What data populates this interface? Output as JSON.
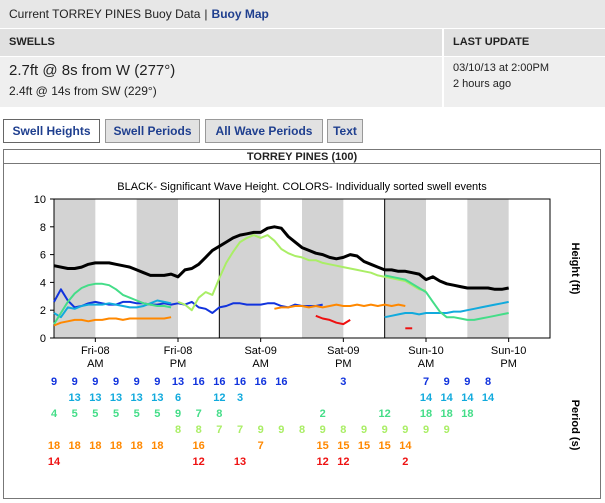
{
  "topbar": {
    "prefix": "Current TORREY PINES Buoy Data",
    "separator": "|",
    "map_link": "Buoy Map"
  },
  "swells": {
    "header": "SWELLS",
    "primary": "2.7ft @ 8s from W (277°)",
    "secondary": "2.4ft @ 14s from SW (229°)"
  },
  "update": {
    "header": "LAST UPDATE",
    "time": "03/10/13 at 2:00PM",
    "ago": "2 hours ago"
  },
  "tabs": [
    "Swell Heights",
    "Swell Periods",
    "All Wave Periods",
    "Text"
  ],
  "chart_title": "TORREY PINES (100)",
  "colors": {
    "black": "#000000",
    "blue": "#1133dd",
    "cyan": "#11aadd",
    "green": "#44dd88",
    "lime": "#aaee66",
    "orange": "#ff8800",
    "red": "#ee1111"
  },
  "chart_data": {
    "type": "line",
    "title": "BLACK- Significant Wave Height.  COLORS- Individually sorted swell events",
    "ylabel": "Height (ft)",
    "ylim": [
      0,
      10
    ],
    "yticks": [
      0,
      2,
      4,
      6,
      8,
      10
    ],
    "xlim": [
      0,
      72
    ],
    "x_ticks": [
      {
        "x": 6,
        "top": "Fri-08",
        "bottom": "AM"
      },
      {
        "x": 18,
        "top": "Fri-08",
        "bottom": "PM"
      },
      {
        "x": 30,
        "top": "Sat-09",
        "bottom": "AM"
      },
      {
        "x": 42,
        "top": "Sat-09",
        "bottom": "PM"
      },
      {
        "x": 54,
        "top": "Sun-10",
        "bottom": "AM"
      },
      {
        "x": 66,
        "top": "Sun-10",
        "bottom": "PM"
      }
    ],
    "night_bands": [
      [
        0,
        6
      ],
      [
        12,
        18
      ],
      [
        24,
        30
      ],
      [
        36,
        42
      ],
      [
        48,
        54
      ],
      [
        60,
        66
      ]
    ],
    "day_dividers": [
      24,
      48
    ],
    "series": [
      {
        "name": "Significant Wave Height",
        "color": "black",
        "x": [
          0,
          2,
          3,
          4,
          5,
          6,
          7,
          8,
          9,
          10,
          11,
          12,
          13,
          14,
          15,
          16,
          17,
          18,
          19,
          20,
          21,
          22,
          23,
          24,
          25,
          26,
          27,
          28,
          29,
          30,
          31,
          32,
          33,
          34,
          35,
          36,
          37,
          38,
          39,
          40,
          41,
          42,
          43,
          44,
          45,
          46,
          47,
          48,
          49,
          50,
          51,
          52,
          53,
          54,
          55,
          56,
          57,
          58,
          59,
          60,
          61,
          62,
          63,
          64,
          65,
          66
        ],
        "values": [
          5.2,
          5.0,
          5.0,
          5.1,
          5.3,
          5.4,
          5.4,
          5.4,
          5.3,
          5.2,
          5.1,
          4.9,
          4.7,
          4.5,
          4.5,
          4.5,
          4.6,
          4.4,
          4.9,
          5.0,
          5.3,
          5.8,
          6.3,
          6.6,
          6.9,
          7.2,
          7.4,
          7.5,
          7.6,
          7.6,
          7.9,
          8.0,
          7.9,
          7.3,
          6.9,
          6.5,
          6.3,
          6.1,
          6.0,
          5.8,
          5.7,
          5.8,
          6.0,
          5.9,
          5.5,
          5.3,
          5.1,
          4.9,
          4.9,
          4.8,
          4.8,
          4.7,
          4.6,
          4.2,
          4.4,
          4.1,
          3.9,
          3.8,
          3.7,
          3.6,
          3.6,
          3.6,
          3.6,
          3.5,
          3.5,
          3.6
        ]
      },
      {
        "name": "Swell 9s",
        "color": "blue",
        "x": [
          0,
          1,
          2,
          3,
          4,
          5,
          6,
          7,
          8,
          9,
          10,
          11,
          12,
          13,
          14,
          15,
          16,
          17,
          18,
          19,
          20,
          21,
          22,
          23,
          24,
          25,
          26,
          27,
          28,
          29,
          30,
          31,
          32,
          33,
          34,
          35,
          36,
          37,
          38,
          39
        ],
        "values": [
          2.6,
          3.5,
          2.7,
          2.2,
          2.3,
          2.5,
          2.6,
          2.5,
          2.4,
          2.4,
          2.6,
          2.6,
          2.5,
          2.5,
          2.4,
          2.4,
          2.5,
          2.4,
          2.5,
          2.4,
          2.6,
          2.2,
          2.1,
          1.8,
          2.2,
          2.3,
          2.5,
          2.5,
          2.4,
          2.4,
          2.4,
          2.5,
          2.5,
          2.3,
          2.2,
          2.4,
          2.3,
          2.3,
          2.3,
          2.4
        ]
      },
      {
        "name": "Swell 13s",
        "color": "cyan",
        "x": [
          0,
          1,
          2,
          3,
          4,
          5,
          6,
          7,
          8,
          9,
          10,
          11,
          12,
          13,
          14,
          15,
          16,
          17
        ],
        "values": [
          1.8,
          1.5,
          2.2,
          2.1,
          2.3,
          2.4,
          2.4,
          2.4,
          2.5,
          2.4,
          2.3,
          2.2,
          2.2,
          2.3,
          2.5,
          2.7,
          2.6,
          2.5
        ]
      },
      {
        "name": "Swell 5s",
        "color": "green",
        "x": [
          0,
          1,
          2,
          3,
          4,
          5,
          6,
          7,
          8,
          9,
          10,
          11,
          12,
          13,
          14,
          15,
          16,
          17
        ],
        "values": [
          1.0,
          1.8,
          2.6,
          3.2,
          3.6,
          3.8,
          3.9,
          3.9,
          3.8,
          3.5,
          3.1,
          2.9,
          2.7,
          2.5,
          2.4,
          2.3,
          2.3,
          2.2
        ]
      },
      {
        "name": "Swell 8s",
        "color": "lime",
        "x": [
          18,
          19,
          20,
          21,
          22,
          23,
          24,
          25,
          26,
          27,
          28,
          29,
          30,
          31,
          32,
          33,
          34,
          35,
          36,
          37,
          38,
          39,
          40,
          41,
          42,
          43,
          44,
          45,
          46,
          47,
          48,
          49,
          50,
          51,
          52,
          53,
          54
        ],
        "values": [
          2.6,
          2.4,
          2.0,
          2.9,
          3.3,
          3.1,
          4.3,
          5.4,
          6.2,
          6.9,
          7.2,
          7.4,
          7.2,
          7.4,
          7.0,
          6.4,
          6.1,
          5.9,
          5.8,
          5.6,
          5.6,
          5.4,
          5.3,
          5.2,
          5.1,
          5.0,
          4.9,
          4.8,
          4.7,
          4.5,
          4.4,
          4.3,
          4.2,
          4.1,
          3.8,
          3.5,
          3.4
        ]
      },
      {
        "name": "Swell 18s",
        "color": "orange",
        "x": [
          0,
          1,
          2,
          3,
          4,
          5,
          6,
          7,
          8,
          9,
          10,
          11,
          12,
          13,
          14,
          15,
          16,
          17
        ],
        "values": [
          0.9,
          1.1,
          1.2,
          1.3,
          1.3,
          1.2,
          1.3,
          1.3,
          1.4,
          1.4,
          1.3,
          1.4,
          1.4,
          1.4,
          1.4,
          1.4,
          1.4,
          1.5
        ]
      },
      {
        "name": "Swell 16s",
        "color": "cyan",
        "x": [
          48,
          49,
          50,
          51,
          52,
          53,
          54,
          55,
          56,
          57,
          58,
          59,
          60,
          61,
          62,
          63,
          64,
          65,
          66
        ],
        "values": [
          1.5,
          1.6,
          1.7,
          1.8,
          1.8,
          1.7,
          1.8,
          1.8,
          1.8,
          1.8,
          1.9,
          1.9,
          2.0,
          2.1,
          2.2,
          2.3,
          2.4,
          2.5,
          2.6
        ]
      },
      {
        "name": "Swell 7s",
        "color": "green",
        "x": [
          48,
          49,
          50,
          51,
          52,
          53,
          54,
          55,
          56,
          57,
          58,
          59,
          60,
          61,
          62,
          63,
          64,
          65,
          66
        ],
        "values": [
          4.5,
          4.4,
          4.3,
          4.2,
          3.9,
          3.6,
          3.3,
          2.6,
          1.9,
          1.5,
          1.5,
          1.4,
          1.3,
          1.3,
          1.4,
          1.5,
          1.6,
          1.7,
          1.8
        ]
      },
      {
        "name": "Swell 14-15s",
        "color": "orange",
        "x": [
          32,
          33,
          34,
          35,
          36,
          37,
          38,
          39,
          40,
          41,
          42,
          43,
          44,
          45,
          46,
          47,
          48,
          49,
          50,
          51
        ],
        "values": [
          2.1,
          2.2,
          2.2,
          2.3,
          2.3,
          2.2,
          2.3,
          2.2,
          2.3,
          2.4,
          2.3,
          2.3,
          2.4,
          2.3,
          2.4,
          2.3,
          2.4,
          2.3,
          2.4,
          2.3
        ]
      },
      {
        "name": "Swell 12s",
        "color": "red",
        "x": [
          38,
          39,
          40,
          41,
          42,
          43
        ],
        "values": [
          1.6,
          1.4,
          1.3,
          1.1,
          1.0,
          1.3
        ]
      },
      {
        "name": "Swell 2s",
        "color": "red",
        "x": [
          51,
          52
        ],
        "values": [
          0.7,
          0.7
        ]
      }
    ],
    "period_rows": [
      {
        "color": "blue",
        "items": [
          [
            "0",
            "9"
          ],
          [
            "3",
            "9"
          ],
          [
            "6",
            "9"
          ],
          [
            "9",
            "9"
          ],
          [
            "12",
            "9"
          ],
          [
            "15",
            "9"
          ],
          [
            "18",
            "13"
          ],
          [
            "21",
            "16"
          ],
          [
            "24",
            "16"
          ],
          [
            "27",
            "16"
          ],
          [
            "30",
            "16"
          ],
          [
            "33",
            "16"
          ],
          [
            "42",
            "3"
          ],
          [
            "54",
            "7"
          ],
          [
            "57",
            "9"
          ],
          [
            "60",
            "9"
          ],
          [
            "63",
            "8"
          ]
        ]
      },
      {
        "color": "cyan",
        "items": [
          [
            "3",
            "13"
          ],
          [
            "6",
            "13"
          ],
          [
            "9",
            "13"
          ],
          [
            "12",
            "13"
          ],
          [
            "15",
            "13"
          ],
          [
            "18",
            "6"
          ],
          [
            "24",
            "12"
          ],
          [
            "27",
            "3"
          ],
          [
            "54",
            "14"
          ],
          [
            "57",
            "14"
          ],
          [
            "60",
            "14"
          ],
          [
            "63",
            "14"
          ]
        ]
      },
      {
        "color": "green",
        "items": [
          [
            "0",
            "4"
          ],
          [
            "3",
            "5"
          ],
          [
            "6",
            "5"
          ],
          [
            "9",
            "5"
          ],
          [
            "12",
            "5"
          ],
          [
            "15",
            "5"
          ],
          [
            "18",
            "9"
          ],
          [
            "21",
            "7"
          ],
          [
            "24",
            "8"
          ],
          [
            "39",
            "2"
          ],
          [
            "48",
            "12"
          ],
          [
            "54",
            "18"
          ],
          [
            "57",
            "18"
          ],
          [
            "60",
            "18"
          ]
        ]
      },
      {
        "color": "lime",
        "items": [
          [
            "18",
            "8"
          ],
          [
            "21",
            "8"
          ],
          [
            "24",
            "7"
          ],
          [
            "27",
            "7"
          ],
          [
            "30",
            "9"
          ],
          [
            "33",
            "9"
          ],
          [
            "36",
            "8"
          ],
          [
            "39",
            "9"
          ],
          [
            "42",
            "8"
          ],
          [
            "45",
            "9"
          ],
          [
            "48",
            "9"
          ],
          [
            "51",
            "9"
          ],
          [
            "54",
            "9"
          ],
          [
            "57",
            "9"
          ]
        ]
      },
      {
        "color": "orange",
        "items": [
          [
            "0",
            "18"
          ],
          [
            "3",
            "18"
          ],
          [
            "6",
            "18"
          ],
          [
            "9",
            "18"
          ],
          [
            "12",
            "18"
          ],
          [
            "15",
            "18"
          ],
          [
            "21",
            "16"
          ],
          [
            "30",
            "7"
          ],
          [
            "39",
            "15"
          ],
          [
            "42",
            "15"
          ],
          [
            "45",
            "15"
          ],
          [
            "48",
            "15"
          ],
          [
            "51",
            "14"
          ]
        ]
      },
      {
        "color": "red",
        "items": [
          [
            "0",
            "14"
          ],
          [
            "21",
            "12"
          ],
          [
            "27",
            "13"
          ],
          [
            "39",
            "12"
          ],
          [
            "42",
            "12"
          ],
          [
            "51",
            "2"
          ]
        ]
      }
    ],
    "period_label": "Period (s)"
  }
}
